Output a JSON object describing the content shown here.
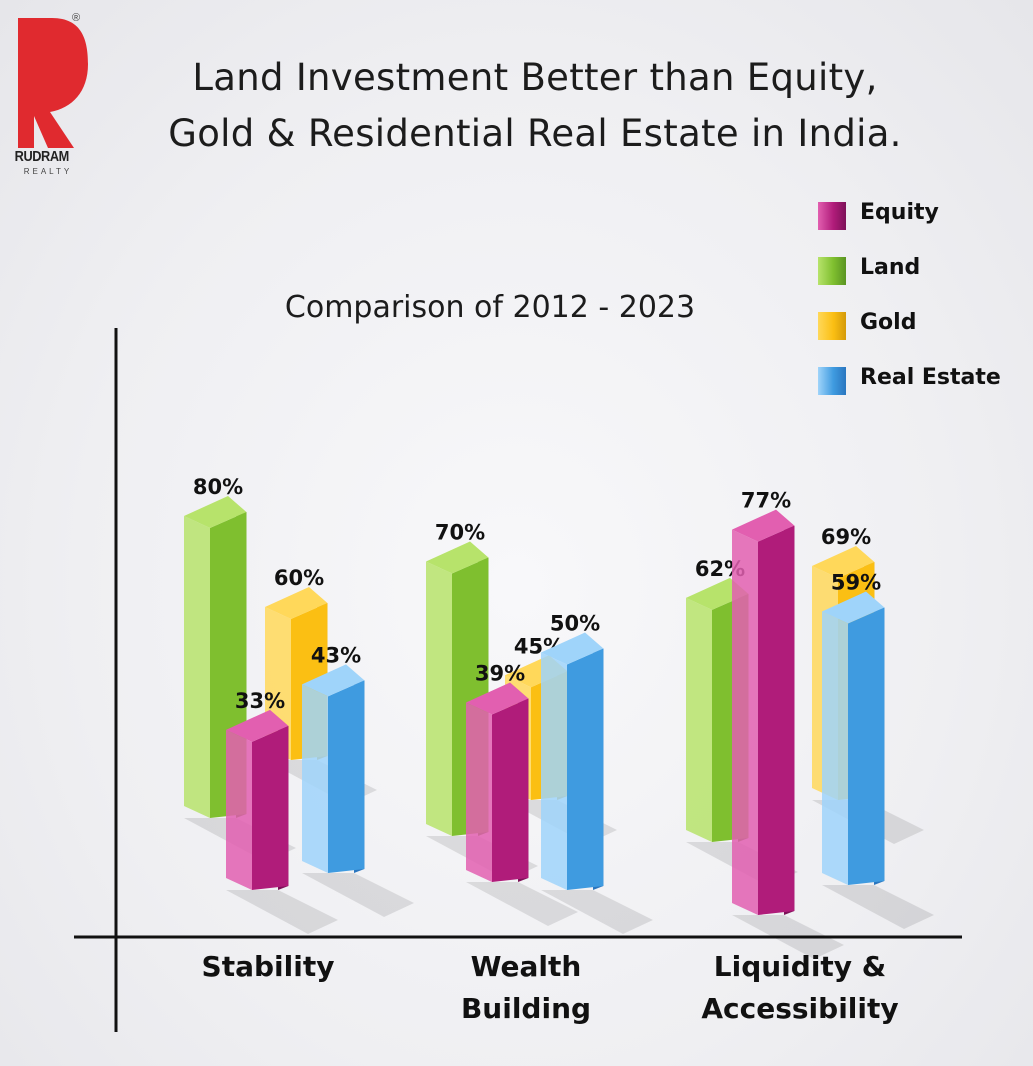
{
  "header": {
    "title_line1": "Land Investment Better than Equity,",
    "title_line2": "Gold & Residential Real Estate in India."
  },
  "logo": {
    "name": "RUDRAM",
    "sub": "REALTY",
    "reg_mark": "®"
  },
  "colors": {
    "Equity": "#b01c7a",
    "Land": "#7fbf2f",
    "Gold": "#fbbf13",
    "Real Estate": "#3f9be0",
    "logo_red": "#e02a2f"
  },
  "chart_data": {
    "type": "bar",
    "title": "Comparison of  2012 - 2023",
    "categories": [
      "Stability",
      "Wealth Building",
      "Liquidity & Accessibility"
    ],
    "category_lines": [
      [
        "Stability"
      ],
      [
        "Wealth",
        "Building"
      ],
      [
        "Liquidity &",
        "Accessibility"
      ]
    ],
    "series": [
      {
        "name": "Equity",
        "values": [
          33,
          39,
          77
        ],
        "labels": [
          "33%",
          "39%",
          "77%"
        ]
      },
      {
        "name": "Land",
        "values": [
          80,
          70,
          62
        ],
        "labels": [
          "80%",
          "70%",
          "62%"
        ]
      },
      {
        "name": "Gold",
        "values": [
          60,
          45,
          69
        ],
        "labels": [
          "60%",
          "45%",
          "69%"
        ]
      },
      {
        "name": "Real Estate",
        "values": [
          43,
          50,
          59
        ],
        "labels": [
          "43%",
          "50%",
          "59%"
        ]
      }
    ],
    "legend_position": "top-right",
    "grid": false
  }
}
